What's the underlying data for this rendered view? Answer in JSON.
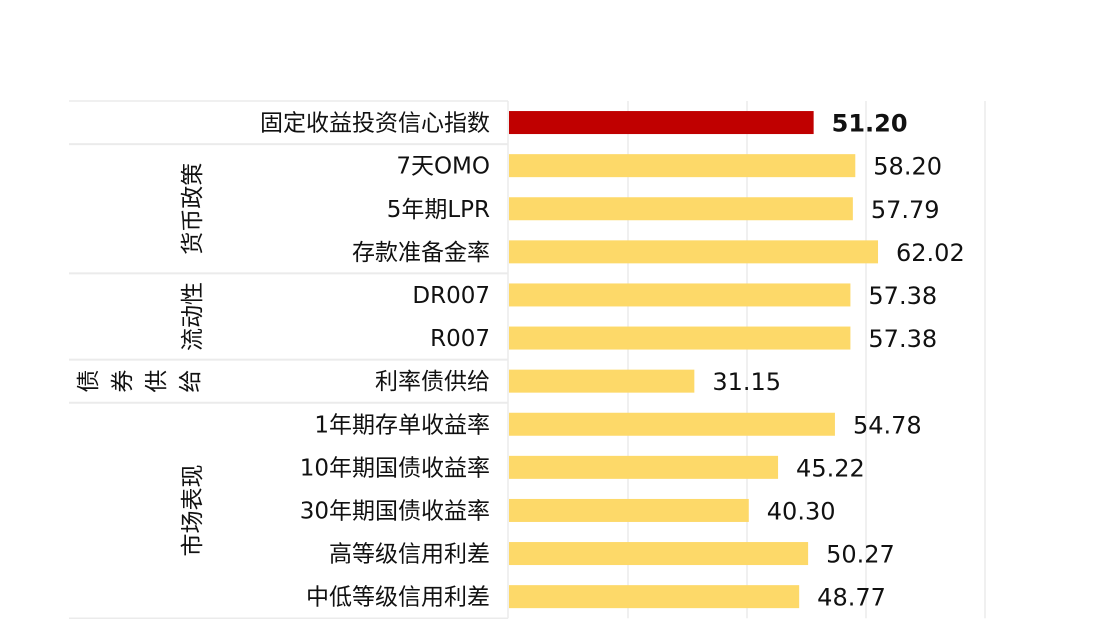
{
  "chart_data": {
    "type": "bar",
    "orientation": "horizontal",
    "categories": [
      "固定收益投资信心指数",
      "7天OMO",
      "5年期LPR",
      "存款准备金率",
      "DR007",
      "R007",
      "利率债供给",
      "1年期存单收益率",
      "10年期国债收益率",
      "30年期国债收益率",
      "高等级信用利差",
      "中低等级信用利差"
    ],
    "values": [
      51.2,
      58.2,
      57.79,
      62.02,
      57.38,
      57.38,
      31.15,
      54.78,
      45.22,
      40.3,
      50.27,
      48.77
    ],
    "value_labels": [
      "51.20",
      "58.20",
      "57.79",
      "62.02",
      "57.38",
      "57.38",
      "31.15",
      "54.78",
      "45.22",
      "40.30",
      "50.27",
      "48.77"
    ],
    "groups": [
      {
        "name": "",
        "rows": [
          0
        ]
      },
      {
        "name": "货币政策",
        "rows": [
          1,
          2,
          3
        ]
      },
      {
        "name": "流动性",
        "rows": [
          4,
          5
        ]
      },
      {
        "name": "债券供给",
        "rows": [
          6
        ]
      },
      {
        "name": "市场表现",
        "rows": [
          7,
          8,
          9,
          10,
          11
        ]
      }
    ],
    "xlim": [
      0,
      80
    ],
    "x_gridlines": [
      20,
      40,
      60,
      80
    ],
    "grid": true,
    "legend": "none",
    "title": "",
    "xlabel": "",
    "ylabel": "",
    "colors": {
      "highlight": "#C00000",
      "bar": "#FDD969",
      "highlight_label": "#C00000",
      "label": "#111111",
      "grid": "#EBEBEB"
    }
  }
}
